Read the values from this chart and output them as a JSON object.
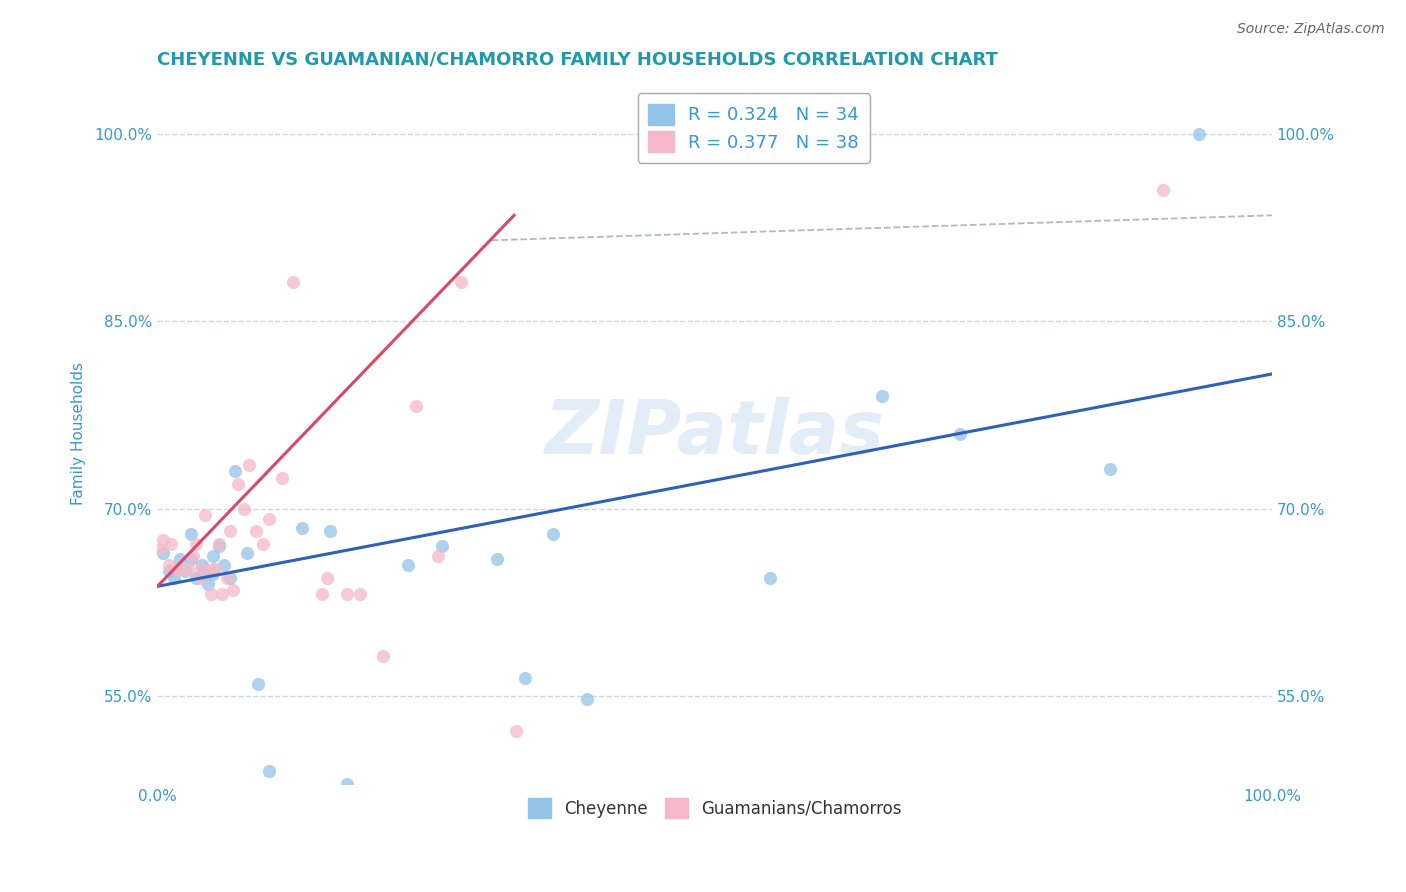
{
  "title": "CHEYENNE VS GUAMANIAN/CHAMORRO FAMILY HOUSEHOLDS CORRELATION CHART",
  "source": "Source: ZipAtlas.com",
  "ylabel": "Family Households",
  "background_color": "#ffffff",
  "title_color": "#2299aa",
  "title_fontsize": 13,
  "watermark": "ZIPatlas",
  "R_cheyenne": 0.324,
  "N_cheyenne": 34,
  "R_guamanian": 0.377,
  "N_guamanian": 38,
  "cheyenne_color": "#93c4e8",
  "guamanian_color": "#f5b8c8",
  "cheyenne_line_color": "#3060b8",
  "guamanian_line_color": "#d84868",
  "grid_color": "#c8d8e8",
  "tick_label_color": "#3898d0",
  "xmin": 0.0,
  "xmax": 1.0,
  "ymin": 0.48,
  "ymax": 1.04,
  "ytick_positions": [
    0.55,
    0.7,
    0.85,
    1.0
  ],
  "ytick_labels": [
    "55.0%",
    "70.0%",
    "85.0%",
    "100.0%"
  ],
  "xtick_positions": [
    0.0,
    0.25,
    0.5,
    0.75,
    1.0
  ],
  "xtick_labels": [
    "0.0%",
    "",
    "",
    "",
    "100.0%"
  ],
  "cheyenne_x": [
    0.005,
    0.01,
    0.015,
    0.02,
    0.025,
    0.03,
    0.03,
    0.035,
    0.04,
    0.04,
    0.045,
    0.05,
    0.05,
    0.055,
    0.06,
    0.065,
    0.07,
    0.08,
    0.09,
    0.1,
    0.13,
    0.155,
    0.17,
    0.225,
    0.255,
    0.305,
    0.33,
    0.355,
    0.385,
    0.55,
    0.65,
    0.72,
    0.855,
    0.935
  ],
  "cheyenne_y": [
    0.665,
    0.65,
    0.645,
    0.66,
    0.65,
    0.66,
    0.68,
    0.645,
    0.648,
    0.655,
    0.64,
    0.648,
    0.662,
    0.67,
    0.655,
    0.645,
    0.73,
    0.665,
    0.56,
    0.49,
    0.685,
    0.682,
    0.48,
    0.655,
    0.67,
    0.66,
    0.565,
    0.68,
    0.548,
    0.645,
    0.79,
    0.76,
    0.732,
    1.0
  ],
  "guamanian_x": [
    0.002,
    0.005,
    0.01,
    0.012,
    0.018,
    0.022,
    0.028,
    0.032,
    0.035,
    0.038,
    0.04,
    0.043,
    0.048,
    0.05,
    0.052,
    0.055,
    0.058,
    0.062,
    0.065,
    0.068,
    0.072,
    0.078,
    0.082,
    0.088,
    0.095,
    0.1,
    0.112,
    0.122,
    0.148,
    0.152,
    0.17,
    0.182,
    0.202,
    0.232,
    0.252,
    0.272,
    0.322,
    0.902
  ],
  "guamanian_y": [
    0.668,
    0.675,
    0.655,
    0.672,
    0.652,
    0.652,
    0.652,
    0.662,
    0.672,
    0.645,
    0.652,
    0.695,
    0.632,
    0.652,
    0.652,
    0.672,
    0.632,
    0.645,
    0.682,
    0.635,
    0.72,
    0.7,
    0.735,
    0.682,
    0.672,
    0.692,
    0.725,
    0.882,
    0.632,
    0.645,
    0.632,
    0.632,
    0.582,
    0.782,
    0.662,
    0.882,
    0.522,
    0.955
  ],
  "cheyenne_line_x0": 0.0,
  "cheyenne_line_x1": 1.0,
  "cheyenne_line_y0": 0.638,
  "cheyenne_line_y1": 0.808,
  "guamanian_line_x0": 0.0,
  "guamanian_line_x1": 0.32,
  "guamanian_line_y0": 0.638,
  "guamanian_line_y1": 0.935,
  "dash_line_x0": 0.3,
  "dash_line_x1": 1.0,
  "dash_line_y0": 0.915,
  "dash_line_y1": 0.935
}
